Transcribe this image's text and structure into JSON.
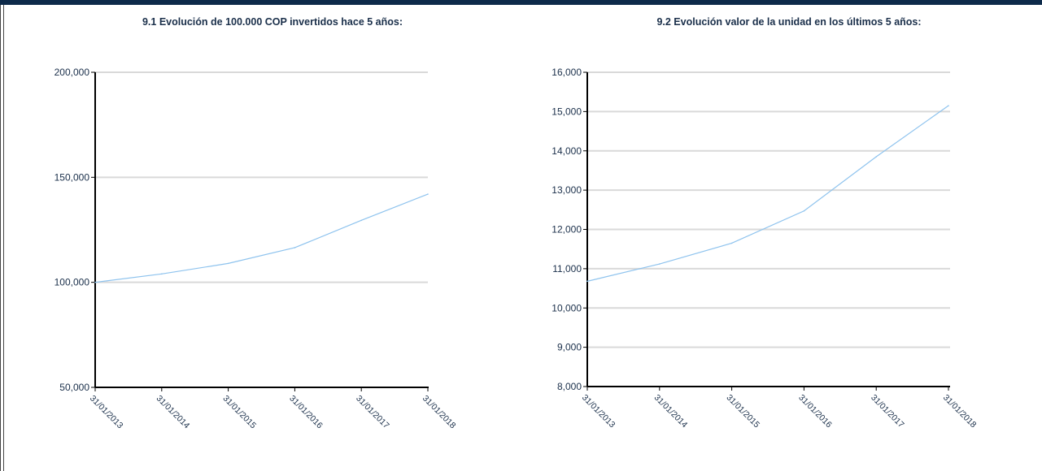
{
  "colors": {
    "header_bar": "#0d2a4a",
    "grid": "#d9d9d9",
    "axis": "#000000",
    "series_line": "#8ec3ee",
    "text": "#1a2f4a"
  },
  "chart_data": [
    {
      "type": "line",
      "title": "9.1 Evolución de 100.000 COP invertidos hace 5 años:",
      "x": [
        "31/01/2013",
        "31/01/2014",
        "31/01/2015",
        "31/01/2016",
        "31/01/2017",
        "31/01/2018"
      ],
      "y_ticks": [
        "50,000",
        "100,000",
        "150,000",
        "200,000"
      ],
      "ylim": [
        50000,
        200000
      ],
      "y_tick_values": [
        50000,
        100000,
        150000,
        200000
      ],
      "grid": true,
      "series": [
        {
          "values": [
            100000,
            104000,
            109000,
            116500,
            129500,
            142000
          ]
        }
      ]
    },
    {
      "type": "line",
      "title": "9.2 Evolución valor de la unidad en los últimos 5 años:",
      "x": [
        "31/01/2013",
        "31/01/2014",
        "31/01/2015",
        "31/01/2016",
        "31/01/2017",
        "31/01/2018"
      ],
      "y_ticks": [
        "8,000",
        "9,000",
        "10,000",
        "11,000",
        "12,000",
        "13,000",
        "14,000",
        "15,000",
        "16,000"
      ],
      "ylim": [
        8000,
        16000
      ],
      "y_tick_values": [
        8000,
        9000,
        10000,
        11000,
        12000,
        13000,
        14000,
        15000,
        16000
      ],
      "grid": true,
      "series": [
        {
          "values": [
            10680,
            11120,
            11650,
            12470,
            13850,
            15150
          ]
        }
      ]
    }
  ]
}
